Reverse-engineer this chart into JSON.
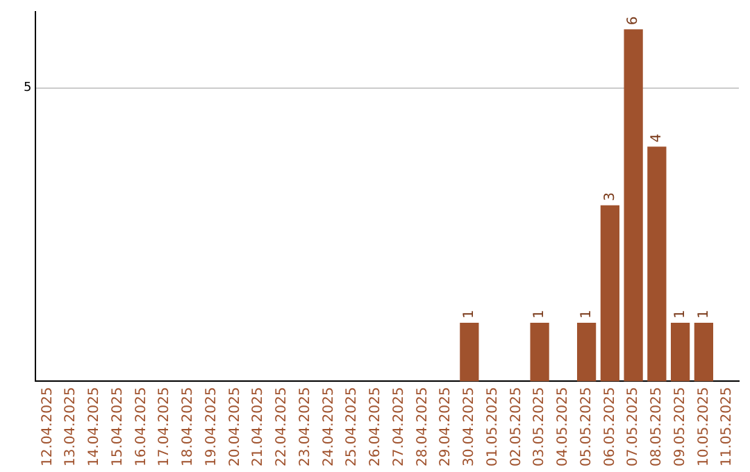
{
  "chart_data": {
    "type": "bar",
    "categories": [
      "12.04.2025",
      "13.04.2025",
      "14.04.2025",
      "15.04.2025",
      "16.04.2025",
      "17.04.2025",
      "18.04.2025",
      "19.04.2025",
      "20.04.2025",
      "21.04.2025",
      "22.04.2025",
      "23.04.2025",
      "24.04.2025",
      "25.04.2025",
      "26.04.2025",
      "27.04.2025",
      "28.04.2025",
      "29.04.2025",
      "30.04.2025",
      "01.05.2025",
      "02.05.2025",
      "03.05.2025",
      "04.05.2025",
      "05.05.2025",
      "06.05.2025",
      "07.05.2025",
      "08.05.2025",
      "09.05.2025",
      "10.05.2025",
      "11.05.2025"
    ],
    "values": [
      null,
      null,
      null,
      null,
      null,
      null,
      null,
      null,
      null,
      null,
      null,
      null,
      null,
      null,
      null,
      null,
      null,
      null,
      1,
      null,
      null,
      1,
      null,
      1,
      3,
      6,
      4,
      1,
      1,
      null
    ],
    "data_labels": true,
    "color": "#a0522d",
    "ylim": [
      0,
      6.3
    ],
    "yticks": [
      5
    ],
    "grid": "y",
    "legend": false
  }
}
